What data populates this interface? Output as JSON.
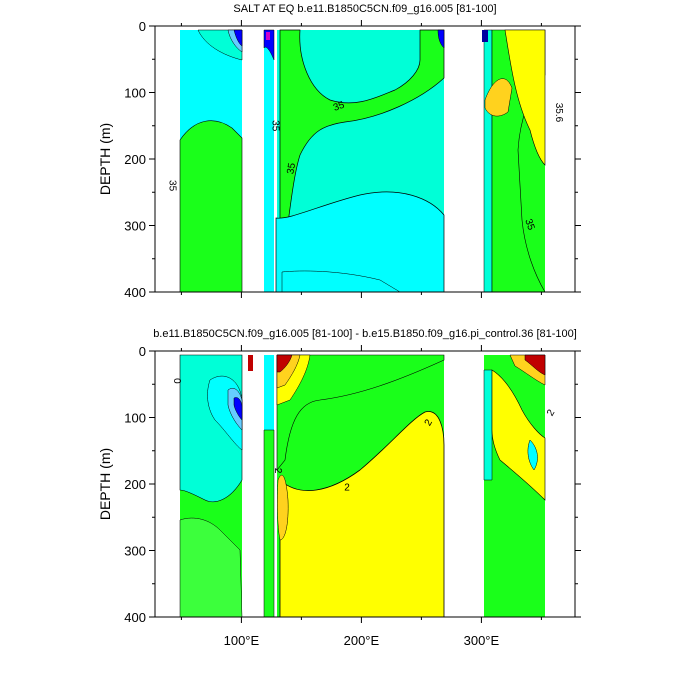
{
  "colors": {
    "cyan": "#00ffff",
    "aquamarine": "#00ffd7",
    "green": "#1aff1a",
    "lime": "#3cff3c",
    "yellow": "#ffff00",
    "orange": "#ffd21e",
    "blue": "#0000ff",
    "darkblue": "#0000a0",
    "lightblue": "#66ccff",
    "red": "#c00000",
    "darkred": "#a00000"
  },
  "chart_data": [
    {
      "type": "contour",
      "title": "SALT AT EQ b.e11.B1850C5CN.f09_g16.005 [81-100]",
      "ylabel": "DEPTH (m)",
      "xlabel": "",
      "xlim": [
        28,
        378
      ],
      "ylim": [
        400,
        0
      ],
      "y_ticks": [
        0,
        100,
        200,
        300,
        400
      ],
      "x_ticks": [
        100,
        200,
        300
      ],
      "x_tick_labels": [
        "100°E",
        "200°E",
        "300°E"
      ],
      "show_x_tick_labels": false,
      "contour_labels": [
        {
          "text": "35",
          "lon": 40,
          "depth": 240,
          "rotate": 90
        },
        {
          "text": "35",
          "lon": 126,
          "depth": 150,
          "rotate": 90
        },
        {
          "text": "35",
          "lon": 144,
          "depth": 215,
          "rotate": -80
        },
        {
          "text": "35",
          "lon": 182,
          "depth": 125,
          "rotate": -20
        },
        {
          "text": "35.6",
          "lon": 362,
          "depth": 130,
          "rotate": 90
        },
        {
          "text": "35",
          "lon": 338,
          "depth": 300,
          "rotate": 70
        }
      ]
    },
    {
      "type": "contour",
      "title": "b.e11.B1850C5CN.f09_g16.005 [81-100] - b.e15.B1850.f09_g16.pi_control.36 [81-100]",
      "ylabel": "DEPTH (m)",
      "xlabel": "",
      "xlim": [
        28,
        378
      ],
      "ylim": [
        400,
        0
      ],
      "y_ticks": [
        0,
        100,
        200,
        300,
        400
      ],
      "x_ticks": [
        100,
        200,
        300
      ],
      "x_tick_labels": [
        "100°E",
        "200°E",
        "300°E"
      ],
      "show_x_tick_labels": true,
      "contour_labels": [
        {
          "text": "0",
          "lon": 44,
          "depth": 45,
          "rotate": 90
        },
        {
          "text": "2",
          "lon": 128,
          "depth": 180,
          "rotate": 90
        },
        {
          "text": "2",
          "lon": 188,
          "depth": 210,
          "rotate": 0
        },
        {
          "text": "2",
          "lon": 258,
          "depth": 110,
          "rotate": -60
        },
        {
          "text": "2",
          "lon": 360,
          "depth": 95,
          "rotate": -60
        }
      ]
    }
  ]
}
